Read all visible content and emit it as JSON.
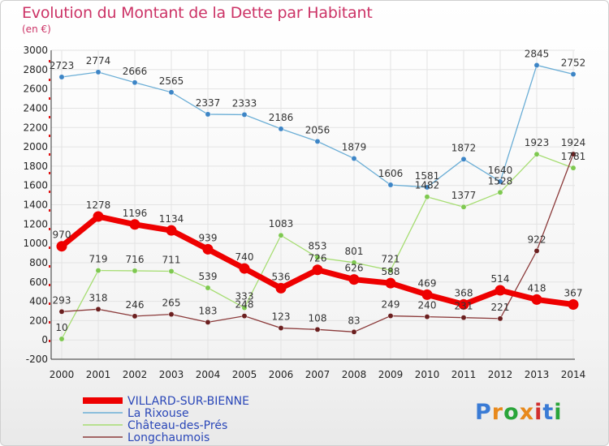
{
  "title": "Evolution du Montant de la Dette par Habitant",
  "unit": "(en €)",
  "logo": {
    "text": "Proxiti",
    "colors": [
      "#3a7bd5",
      "#e8891c",
      "#2aa53a",
      "#e8891c",
      "#d12e2e",
      "#3a7bd5",
      "#2aa53a"
    ]
  },
  "chart_data": {
    "type": "line",
    "x": [
      2000,
      2001,
      2002,
      2003,
      2004,
      2005,
      2006,
      2007,
      2008,
      2009,
      2010,
      2011,
      2012,
      2013,
      2014
    ],
    "ylim": [
      -200,
      3000
    ],
    "yticks": [
      -200,
      0,
      200,
      400,
      600,
      800,
      1000,
      1200,
      1400,
      1600,
      1800,
      2000,
      2200,
      2400,
      2600,
      2800,
      3000
    ],
    "grid": true,
    "legend_position": "bottom-left",
    "series": [
      {
        "name": "VILLARD-SUR-BIENNE",
        "color": "#ee0000",
        "values": [
          970,
          1278,
          1196,
          1134,
          939,
          740,
          536,
          726,
          626,
          588,
          469,
          368,
          514,
          418,
          367
        ]
      },
      {
        "name": "La Rixouse",
        "color": "#6baed6",
        "marker": "#3d85c6",
        "values": [
          2723,
          2774,
          2666,
          2565,
          2337,
          2333,
          2186,
          2056,
          1879,
          1606,
          1581,
          1872,
          1640,
          2845,
          2752
        ]
      },
      {
        "name": "Château-des-Prés",
        "color": "#a6dd72",
        "marker": "#7ec850",
        "values": [
          10,
          719,
          716,
          711,
          539,
          333,
          1083,
          853,
          801,
          721,
          1482,
          1377,
          1528,
          1923,
          1781
        ]
      },
      {
        "name": "Longchaumois",
        "color": "#8b3a3a",
        "marker": "#6b1f1f",
        "values": [
          293,
          318,
          246,
          265,
          183,
          248,
          123,
          108,
          83,
          249,
          240,
          231,
          221,
          922,
          1924
        ]
      }
    ]
  }
}
